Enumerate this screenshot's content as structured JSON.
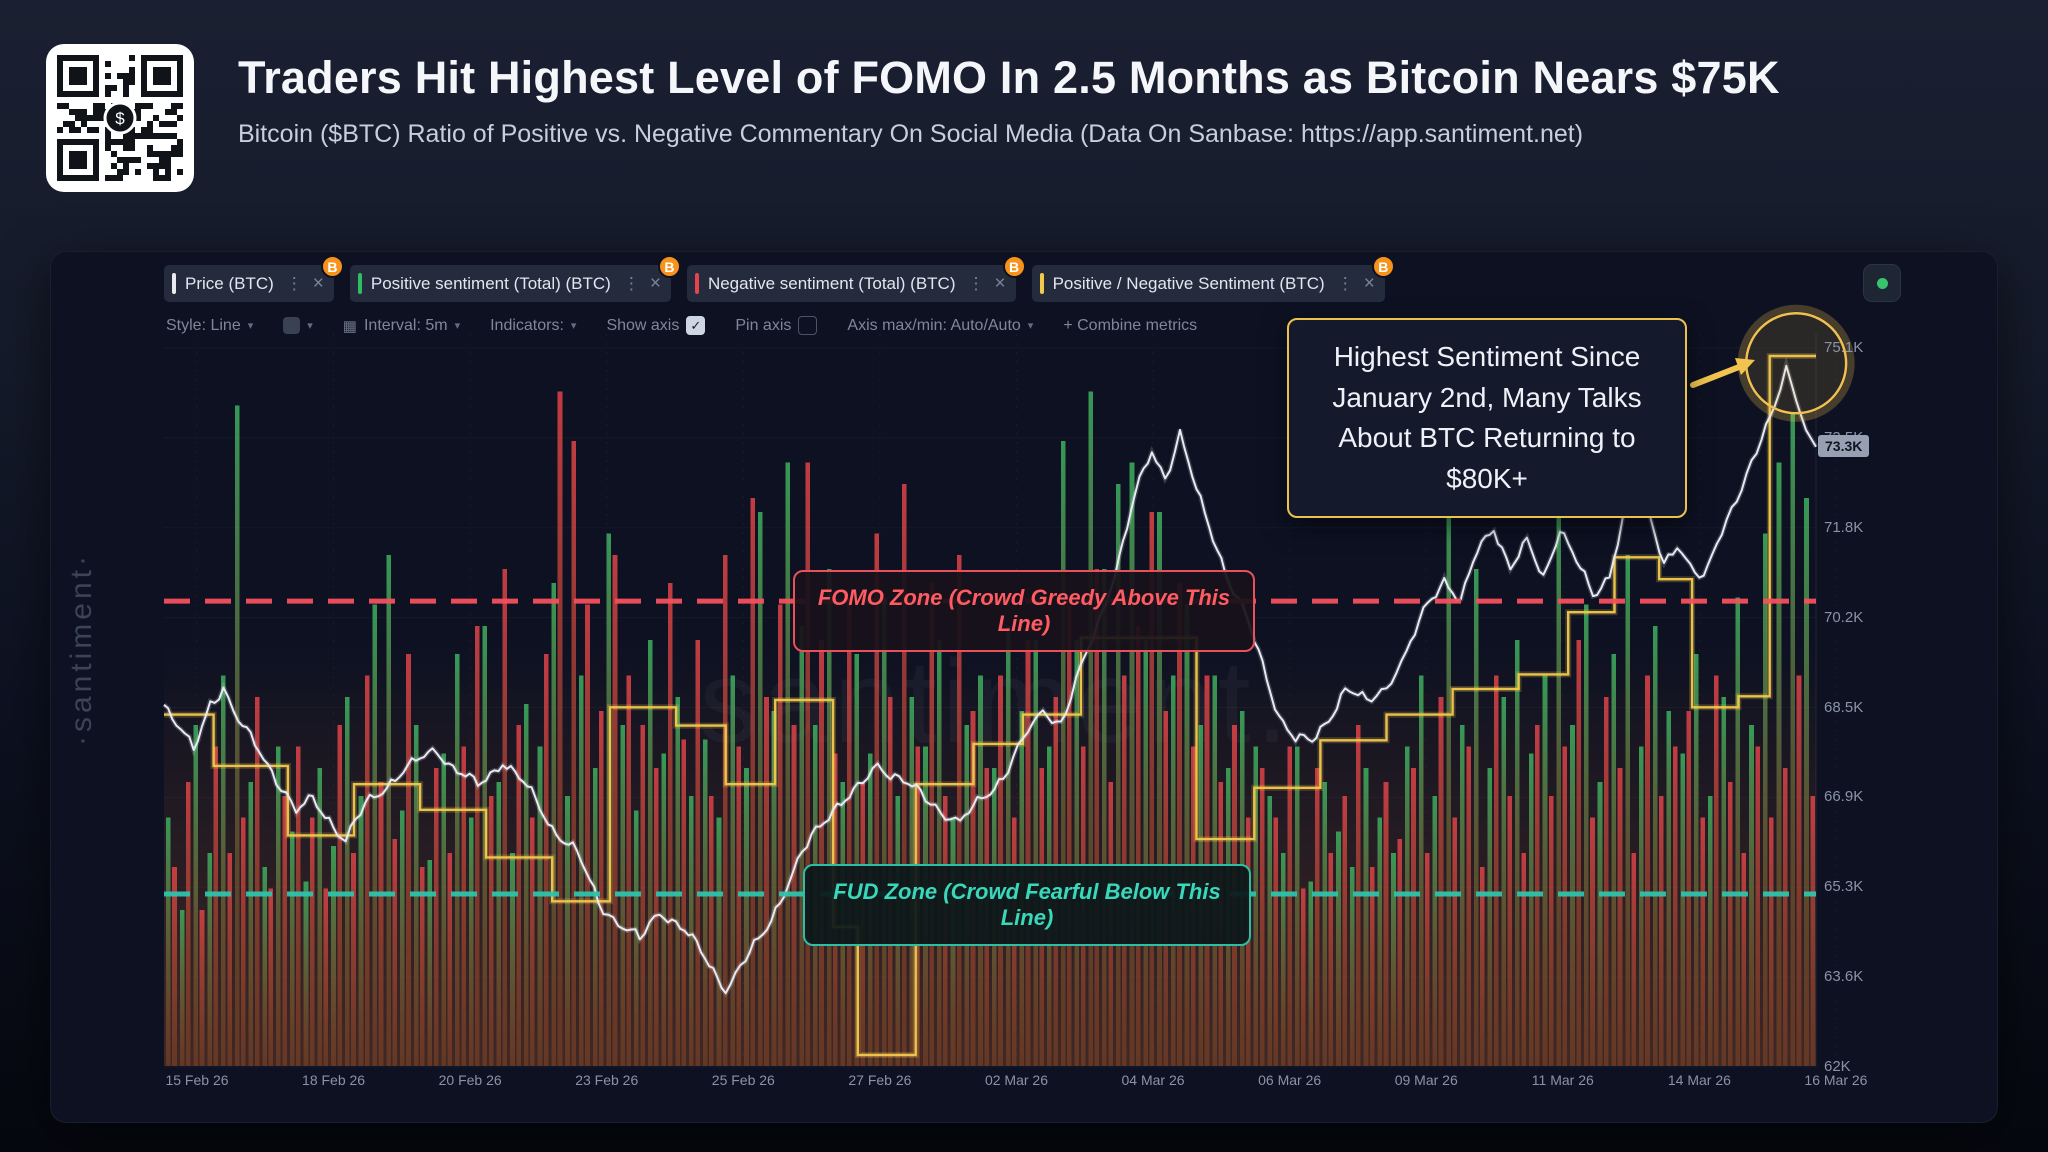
{
  "header": {
    "title": "Traders Hit Highest Level of FOMO In 2.5 Months as Bitcoin Nears $75K",
    "subtitle": "Bitcoin ($BTC) Ratio of Positive vs. Negative Commentary On Social Media (Data On Sanbase: https://app.santiment.net)"
  },
  "qr_logo": "$",
  "watermark_side": "·santiment·",
  "watermark_center": "santiment.",
  "icons": {
    "dots": "⋮",
    "close": "×",
    "caret": "▾",
    "check": "✓",
    "calendar": "▦"
  },
  "metric_tabs": [
    {
      "label": "Price (BTC)",
      "accent": "#e8eaf0",
      "badge": "B"
    },
    {
      "label": "Positive sentiment (Total) (BTC)",
      "accent": "#2fbf62",
      "badge": "B"
    },
    {
      "label": "Negative sentiment (Total) (BTC)",
      "accent": "#e8434a",
      "badge": "B"
    },
    {
      "label": "Positive / Negative Sentiment (BTC)",
      "accent": "#f2c94c",
      "badge": "B"
    }
  ],
  "toolbar": {
    "style": "Style: Line",
    "interval": "Interval: 5m",
    "indicators": "Indicators:",
    "show_axis": "Show axis",
    "pin_axis": "Pin axis",
    "axis_maxmin": "Axis max/min: Auto/Auto",
    "combine_metrics": "+ Combine metrics"
  },
  "callout": {
    "text": "Highest Sentiment Since January 2nd, Many Talks About BTC Returning to $80K+"
  },
  "chart_data": {
    "type": "composite",
    "series": [
      {
        "name": "Price (BTC)",
        "type": "line"
      },
      {
        "name": "Positive sentiment (Total) (BTC)",
        "type": "bar"
      },
      {
        "name": "Negative sentiment (Total) (BTC)",
        "type": "bar"
      },
      {
        "name": "Positive / Negative Sentiment (BTC)",
        "type": "step"
      }
    ],
    "colors": {
      "positive": "#3aa85c",
      "negative": "#e04348",
      "ratio": "#f2c94c",
      "price": "#e7eaf2",
      "wash": "#b85c28",
      "fomo": "#f4515c",
      "fud": "#2fc3ab"
    },
    "y_axis": {
      "ticks": [
        "75.1K",
        "73.5K",
        "71.8K",
        "70.2K",
        "68.5K",
        "66.9K",
        "65.3K",
        "63.6K",
        "62K"
      ],
      "top_value": 75.1,
      "bottom_value": 62.0,
      "price_badge": "73.3K",
      "price_badge_value": 73.3
    },
    "x_axis": {
      "ticks": [
        "15 Feb 26",
        "18 Feb 26",
        "20 Feb 26",
        "23 Feb 26",
        "25 Feb 26",
        "27 Feb 26",
        "02 Mar 26",
        "04 Mar 26",
        "06 Mar 26",
        "09 Mar 26",
        "11 Mar 26",
        "14 Mar 26",
        "16 Mar 26"
      ]
    },
    "zones": {
      "fomo": {
        "label": "FOMO Zone (Crowd Greedy Above This Line)",
        "y_frac": 0.635
      },
      "fud": {
        "label": "FUD Zone (Crowd Fearful Below This Line)",
        "y_frac": 0.235
      }
    },
    "highlight": {
      "x_frac": 0.988,
      "y_frac": 0.96
    },
    "price_points": [
      [
        0,
        68.6
      ],
      [
        0.01,
        68.2
      ],
      [
        0.018,
        67.8
      ],
      [
        0.028,
        68.7
      ],
      [
        0.036,
        69
      ],
      [
        0.045,
        68.3
      ],
      [
        0.055,
        67.8
      ],
      [
        0.068,
        67.2
      ],
      [
        0.08,
        66.6
      ],
      [
        0.09,
        66.9
      ],
      [
        0.1,
        66.6
      ],
      [
        0.11,
        66.2
      ],
      [
        0.122,
        66.8
      ],
      [
        0.135,
        67.1
      ],
      [
        0.15,
        67.4
      ],
      [
        0.165,
        67.8
      ],
      [
        0.175,
        67.5
      ],
      [
        0.19,
        67.2
      ],
      [
        0.205,
        67.6
      ],
      [
        0.22,
        67
      ],
      [
        0.235,
        66.3
      ],
      [
        0.25,
        65.9
      ],
      [
        0.263,
        65.1
      ],
      [
        0.275,
        64.7
      ],
      [
        0.288,
        64.3
      ],
      [
        0.3,
        64.8
      ],
      [
        0.315,
        64.4
      ],
      [
        0.33,
        63.9
      ],
      [
        0.34,
        63.5
      ],
      [
        0.352,
        64
      ],
      [
        0.365,
        64.6
      ],
      [
        0.378,
        65.3
      ],
      [
        0.392,
        66.1
      ],
      [
        0.405,
        66.7
      ],
      [
        0.42,
        67.1
      ],
      [
        0.432,
        67.6
      ],
      [
        0.445,
        67.3
      ],
      [
        0.458,
        66.9
      ],
      [
        0.47,
        66.6
      ],
      [
        0.482,
        66.4
      ],
      [
        0.495,
        66.9
      ],
      [
        0.508,
        67.4
      ],
      [
        0.52,
        68
      ],
      [
        0.532,
        68.5
      ],
      [
        0.543,
        68.2
      ],
      [
        0.552,
        68.9
      ],
      [
        0.565,
        70
      ],
      [
        0.578,
        71.3
      ],
      [
        0.588,
        72.5
      ],
      [
        0.598,
        73.3
      ],
      [
        0.606,
        72.8
      ],
      [
        0.615,
        73.5
      ],
      [
        0.625,
        72.4
      ],
      [
        0.635,
        71.6
      ],
      [
        0.645,
        70.8
      ],
      [
        0.655,
        70.2
      ],
      [
        0.665,
        69.4
      ],
      [
        0.675,
        68.5
      ],
      [
        0.685,
        68
      ],
      [
        0.695,
        67.9
      ],
      [
        0.705,
        68.3
      ],
      [
        0.715,
        68.8
      ],
      [
        0.728,
        68.6
      ],
      [
        0.74,
        69
      ],
      [
        0.752,
        69.6
      ],
      [
        0.765,
        70.5
      ],
      [
        0.775,
        70.9
      ],
      [
        0.785,
        70.4
      ],
      [
        0.795,
        71.3
      ],
      [
        0.805,
        71.8
      ],
      [
        0.815,
        71.1
      ],
      [
        0.825,
        71.6
      ],
      [
        0.835,
        71
      ],
      [
        0.845,
        71.9
      ],
      [
        0.855,
        71.2
      ],
      [
        0.865,
        70.5
      ],
      [
        0.875,
        70.9
      ],
      [
        0.885,
        72.2
      ],
      [
        0.893,
        73.3
      ],
      [
        0.9,
        72
      ],
      [
        0.908,
        71.3
      ],
      [
        0.916,
        71.6
      ],
      [
        0.924,
        71.1
      ],
      [
        0.932,
        70.9
      ],
      [
        0.94,
        71.6
      ],
      [
        0.949,
        72.1
      ],
      [
        0.958,
        72.6
      ],
      [
        0.967,
        73.4
      ],
      [
        0.975,
        74.1
      ],
      [
        0.982,
        74.8
      ],
      [
        0.988,
        74.2
      ],
      [
        0.994,
        73.6
      ],
      [
        1,
        73.3
      ]
    ],
    "ratio_steps": [
      [
        0,
        0.48
      ],
      [
        0.03,
        0.41
      ],
      [
        0.075,
        0.315
      ],
      [
        0.115,
        0.385
      ],
      [
        0.155,
        0.35
      ],
      [
        0.195,
        0.285
      ],
      [
        0.235,
        0.225
      ],
      [
        0.27,
        0.49
      ],
      [
        0.31,
        0.465
      ],
      [
        0.34,
        0.385
      ],
      [
        0.37,
        0.5
      ],
      [
        0.405,
        0.19
      ],
      [
        0.42,
        0.015
      ],
      [
        0.455,
        0.385
      ],
      [
        0.49,
        0.44
      ],
      [
        0.52,
        0.48
      ],
      [
        0.555,
        0.585
      ],
      [
        0.625,
        0.31
      ],
      [
        0.66,
        0.38
      ],
      [
        0.7,
        0.445
      ],
      [
        0.74,
        0.48
      ],
      [
        0.78,
        0.515
      ],
      [
        0.82,
        0.535
      ],
      [
        0.85,
        0.62
      ],
      [
        0.878,
        0.695
      ],
      [
        0.905,
        0.665
      ],
      [
        0.925,
        0.49
      ],
      [
        0.953,
        0.505
      ],
      [
        0.972,
        0.97
      ]
    ],
    "positive_bars": [
      0.35,
      0.22,
      0.48,
      0.3,
      0.55,
      0.93,
      0.4,
      0.28,
      0.45,
      0.33,
      0.26,
      0.42,
      0.31,
      0.52,
      0.38,
      0.65,
      0.72,
      0.36,
      0.48,
      0.29,
      0.44,
      0.58,
      0.35,
      0.62,
      0.4,
      0.3,
      0.51,
      0.45,
      0.68,
      0.38,
      0.55,
      0.42,
      0.75,
      0.48,
      0.36,
      0.6,
      0.44,
      0.52,
      0.38,
      0.46,
      0.35,
      0.55,
      0.42,
      0.78,
      0.5,
      0.85,
      0.62,
      0.48,
      0.7,
      0.4,
      0.58,
      0.44,
      0.66,
      0.38,
      0.52,
      0.45,
      0.6,
      0.35,
      0.48,
      0.55,
      0.42,
      0.62,
      0.5,
      0.6,
      0.45,
      0.88,
      0.6,
      0.95,
      0.7,
      0.82,
      0.85,
      0.6,
      0.78,
      0.55,
      0.65,
      0.48,
      0.55,
      0.42,
      0.5,
      0.45,
      0.38,
      0.3,
      0.45,
      0.26,
      0.4,
      0.33,
      0.28,
      0.42,
      0.35,
      0.3,
      0.45,
      0.55,
      0.38,
      0.8,
      0.48,
      0.7,
      0.42,
      0.52,
      0.6,
      0.44,
      0.55,
      0.8,
      0.48,
      0.65,
      0.4,
      0.58,
      0.72,
      0.45,
      0.62,
      0.5,
      0.44,
      0.58,
      0.38,
      0.52,
      0.66,
      0.48,
      0.75,
      0.85,
      0.92,
      0.8
    ],
    "negative_bars": [
      0.28,
      0.4,
      0.22,
      0.45,
      0.3,
      0.35,
      0.52,
      0.25,
      0.38,
      0.45,
      0.35,
      0.25,
      0.48,
      0.3,
      0.55,
      0.4,
      0.32,
      0.58,
      0.28,
      0.42,
      0.3,
      0.45,
      0.62,
      0.38,
      0.7,
      0.48,
      0.35,
      0.58,
      0.95,
      0.88,
      0.65,
      0.5,
      0.72,
      0.55,
      0.48,
      0.42,
      0.68,
      0.46,
      0.6,
      0.38,
      0.72,
      0.45,
      0.8,
      0.52,
      0.65,
      0.48,
      0.85,
      0.6,
      0.44,
      0.66,
      0.4,
      0.75,
      0.52,
      0.82,
      0.45,
      0.68,
      0.38,
      0.72,
      0.5,
      0.42,
      0.55,
      0.35,
      0.6,
      0.42,
      0.52,
      0.65,
      0.45,
      0.7,
      0.4,
      0.55,
      0.62,
      0.78,
      0.5,
      0.68,
      0.45,
      0.55,
      0.4,
      0.48,
      0.35,
      0.42,
      0.35,
      0.45,
      0.25,
      0.42,
      0.3,
      0.38,
      0.48,
      0.28,
      0.4,
      0.32,
      0.42,
      0.3,
      0.52,
      0.35,
      0.45,
      0.28,
      0.55,
      0.38,
      0.3,
      0.48,
      0.38,
      0.45,
      0.6,
      0.35,
      0.52,
      0.42,
      0.3,
      0.55,
      0.38,
      0.45,
      0.5,
      0.35,
      0.55,
      0.4,
      0.3,
      0.45,
      0.35,
      0.42,
      0.55,
      0.38
    ]
  }
}
